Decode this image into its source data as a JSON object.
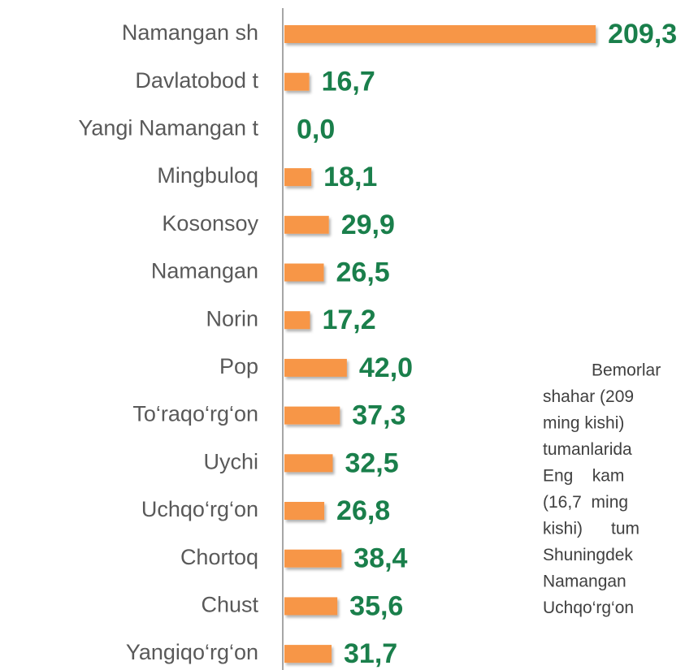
{
  "chart_data": {
    "type": "hbar",
    "categories": [
      "Namangan sh",
      "Davlatobod t",
      "Yangi Namangan t",
      "Mingbuloq",
      "Kosonsoy",
      "Namangan",
      "Norin",
      "Pop",
      "To‘raqo‘rg‘on",
      "Uychi",
      "Uchqo‘rg‘on",
      "Chortoq",
      "Chust",
      "Yangiqo‘rg‘on"
    ],
    "values": [
      209.3,
      16.7,
      0.0,
      18.1,
      29.9,
      26.5,
      17.2,
      42.0,
      37.3,
      32.5,
      26.8,
      38.4,
      35.6,
      31.7
    ],
    "value_labels": [
      "209,3",
      "16,7",
      "0,0",
      "18,1",
      "29,9",
      "26,5",
      "17,2",
      "42,0",
      "37,3",
      "32,5",
      "26,8",
      "38,4",
      "35,6",
      "31,7"
    ],
    "color": "#f79646",
    "xlim": [
      0,
      230
    ]
  },
  "text_block": {
    "lines": [
      "Bemorlar",
      "shahar (209",
      "ming kishi)",
      "tumanlarida",
      "Eng    kam",
      "(16,7  ming",
      "kishi)      tum",
      "Shuningdek",
      "Namangan",
      "Uchqo‘rg‘on"
    ]
  }
}
